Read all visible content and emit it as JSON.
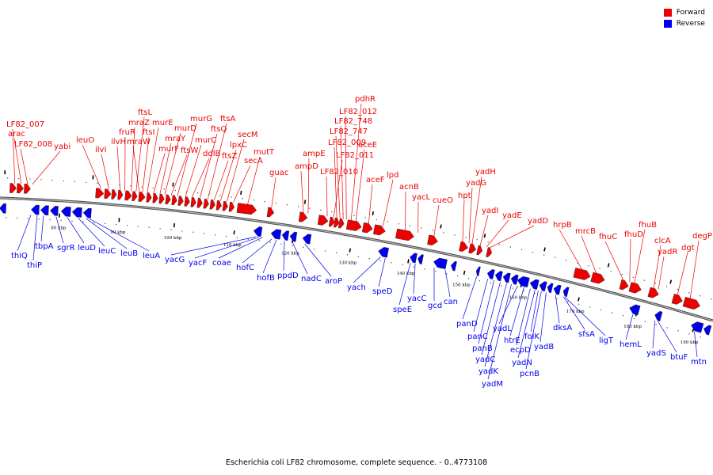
{
  "legend": {
    "forward": {
      "label": "Forward",
      "color": "#ee0000"
    },
    "reverse": {
      "label": "Reverse",
      "color": "#0000ee"
    }
  },
  "caption": "Escherichia coli LF82 chromosome, complete sequence. - 0..4773108",
  "ticks": [
    "80 kbp",
    "90 kbp",
    "100 kbp",
    "110 kbp",
    "120 kbp",
    "130 kbp",
    "140 kbp",
    "150 kbp",
    "160 kbp",
    "170 kbp",
    "180 kbp",
    "190 kbp"
  ],
  "forward_genes": [
    "LF82_007",
    "arac",
    "LF82_008",
    "yabi",
    "leuO",
    "ilvI",
    "ilvH",
    "fruR",
    "mraZ",
    "ftsL",
    "mraW",
    "ftsI",
    "murE",
    "murF",
    "mraY",
    "murD",
    "ftsW",
    "murG",
    "murC",
    "ddlB",
    "ftsQ",
    "ftsA",
    "ftsZ",
    "lpxC",
    "secM",
    "secA",
    "mutT",
    "guac",
    "ampD",
    "ampE",
    "LF82_010",
    "LF82_011",
    "LF82_009",
    "LF82_747",
    "LF82_748",
    "LF82_012",
    "pdhR",
    "aceE",
    "aceF",
    "lpd",
    "acnB",
    "yacL",
    "cueO",
    "hpt",
    "yadG",
    "yadH",
    "yadI",
    "yadE",
    "yadD",
    "hrpB",
    "mrcB",
    "fhuC",
    "fhuD",
    "fhuB",
    "clcA",
    "yadR",
    "dgt",
    "degP"
  ],
  "reverse_genes": [
    "thiQ",
    "thiP",
    "tbpA",
    "sgrR",
    "leuD",
    "leuC",
    "leuB",
    "leuA",
    "yacG",
    "yacF",
    "coae",
    "hofC",
    "hofB",
    "ppdD",
    "nadC",
    "aroP",
    "yach",
    "speD",
    "speE",
    "yacC",
    "gcd",
    "can",
    "panD",
    "panC",
    "panB",
    "yadC",
    "yadK",
    "yadM",
    "yadL",
    "htrE",
    "ecpD",
    "yadN",
    "folK",
    "pcnB",
    "yadB",
    "dksA",
    "sfsA",
    "ligT",
    "hemL",
    "yadS",
    "btuF",
    "mtn"
  ]
}
